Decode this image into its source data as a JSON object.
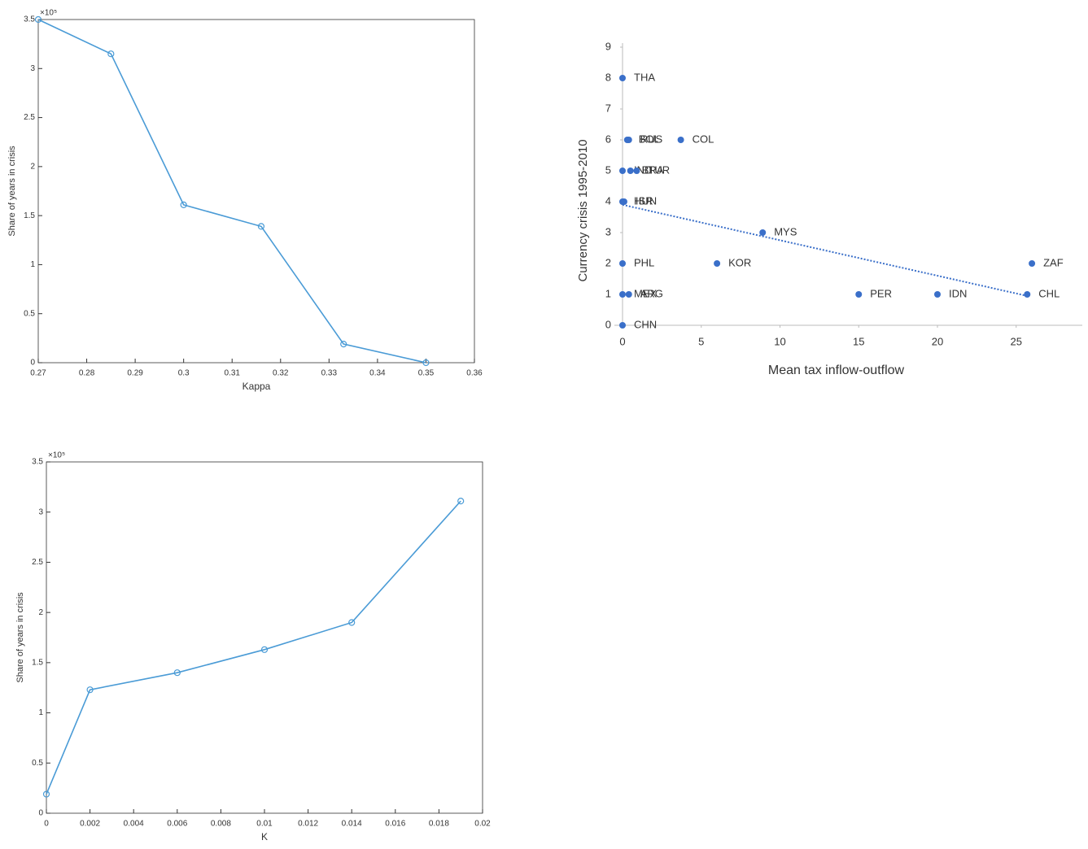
{
  "chart_data": [
    {
      "type": "line",
      "xlabel": "Kappa",
      "ylabel": "Share of years in crisis",
      "y_multiplier": "×10⁵",
      "x": [
        0.27,
        0.285,
        0.3,
        0.316,
        0.333,
        0.35
      ],
      "values": [
        3.5,
        3.15,
        1.61,
        1.39,
        0.19,
        0.0
      ],
      "color": "#4a9bd6",
      "xlim": [
        0.27,
        0.36
      ],
      "xticks": [
        0.27,
        0.28,
        0.29,
        0.3,
        0.31,
        0.32,
        0.33,
        0.34,
        0.35,
        0.36
      ],
      "ylim": [
        0,
        3.5
      ],
      "yticks": [
        0,
        0.5,
        1,
        1.5,
        2,
        2.5,
        3,
        3.5
      ],
      "grid": false
    },
    {
      "type": "line",
      "xlabel": "K",
      "ylabel": "Share of years in crisis",
      "y_multiplier": "×10⁵",
      "x": [
        0,
        0.002,
        0.006,
        0.01,
        0.014,
        0.019
      ],
      "values": [
        0.19,
        1.23,
        1.4,
        1.63,
        1.9,
        3.11
      ],
      "color": "#4a9bd6",
      "xlim": [
        0,
        0.02
      ],
      "xticks": [
        0,
        0.002,
        0.004,
        0.006,
        0.008,
        0.01,
        0.012,
        0.014,
        0.016,
        0.018,
        0.02
      ],
      "ylim": [
        0,
        3.5
      ],
      "yticks": [
        0,
        0.5,
        1,
        1.5,
        2,
        2.5,
        3,
        3.5
      ],
      "grid": false
    },
    {
      "type": "scatter",
      "xlabel": "Mean tax inflow-outflow",
      "ylabel": "Currency crisis 1995-2010",
      "labels": [
        "THA",
        "BOL",
        "RUS",
        "COL",
        "IND",
        "BRA",
        "TUR",
        "HUN",
        "ISR",
        "MYS",
        "PHL",
        "KOR",
        "ZAF",
        "MEX",
        "ARG",
        "PER",
        "IDN",
        "CHL",
        "CHN"
      ],
      "x": [
        0,
        0.3,
        0.4,
        3.7,
        0,
        0.5,
        0.9,
        0,
        0.1,
        8.9,
        0,
        6,
        26,
        0,
        0.4,
        15,
        20,
        25.7,
        0
      ],
      "values": [
        8,
        6,
        6,
        6,
        5,
        5,
        5,
        4,
        4,
        3,
        2,
        2,
        2,
        1,
        1,
        1,
        1,
        1,
        0
      ],
      "color": "#3a6fc9",
      "trendline": {
        "x": [
          0,
          25.7
        ],
        "y": [
          3.9,
          0.95
        ]
      },
      "xlim": [
        0,
        29.2
      ],
      "xticks": [
        0,
        5,
        10,
        15,
        20,
        25
      ],
      "ylim": [
        0,
        9
      ],
      "yticks": [
        0,
        1,
        2,
        3,
        4,
        5,
        6,
        7,
        8,
        9
      ],
      "grid": false
    }
  ]
}
